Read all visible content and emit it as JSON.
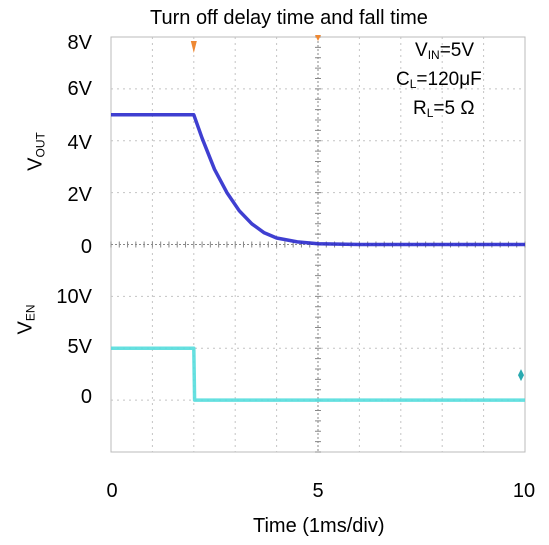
{
  "chart_data": {
    "type": "line",
    "title": "Turn off delay time and fall time",
    "xlabel": "Time (1ms/div)",
    "x_ticks": [
      "0",
      "5",
      "10"
    ],
    "xlim": [
      0,
      10
    ],
    "grid": true,
    "upper_panel": {
      "ylabel_main": "V",
      "ylabel_sub": "OUT",
      "y_ticks": [
        "8V",
        "6V",
        "4V",
        "2V",
        "0"
      ],
      "ylim": [
        0,
        8
      ],
      "series": [
        {
          "color": "#2a2acc",
          "x": [
            0,
            1,
            2,
            2.2,
            2.5,
            2.8,
            3.1,
            3.4,
            3.7,
            4.0,
            4.5,
            5,
            6,
            7,
            8,
            9,
            10
          ],
          "y": [
            5,
            5,
            5,
            4.1,
            2.9,
            2.0,
            1.3,
            0.8,
            0.45,
            0.25,
            0.1,
            0.03,
            0,
            0,
            0,
            0,
            0
          ]
        }
      ]
    },
    "lower_panel": {
      "ylabel_main": "V",
      "ylabel_sub": "EN",
      "y_ticks": [
        "10V",
        "5V",
        "0"
      ],
      "ylim": [
        -5,
        10
      ],
      "series": [
        {
          "color": "#55dddd",
          "x": [
            0,
            2,
            2.02,
            10
          ],
          "y": [
            5,
            5,
            0,
            0
          ]
        }
      ]
    },
    "annotations": {
      "vin_main": "V",
      "vin_sub": "IN",
      "vin_val": "=5V",
      "cl_main": "C",
      "cl_sub": "L",
      "cl_val": "=120μF",
      "rl_main": "R",
      "rl_sub": "L",
      "rl_val": "=5 Ω"
    }
  }
}
